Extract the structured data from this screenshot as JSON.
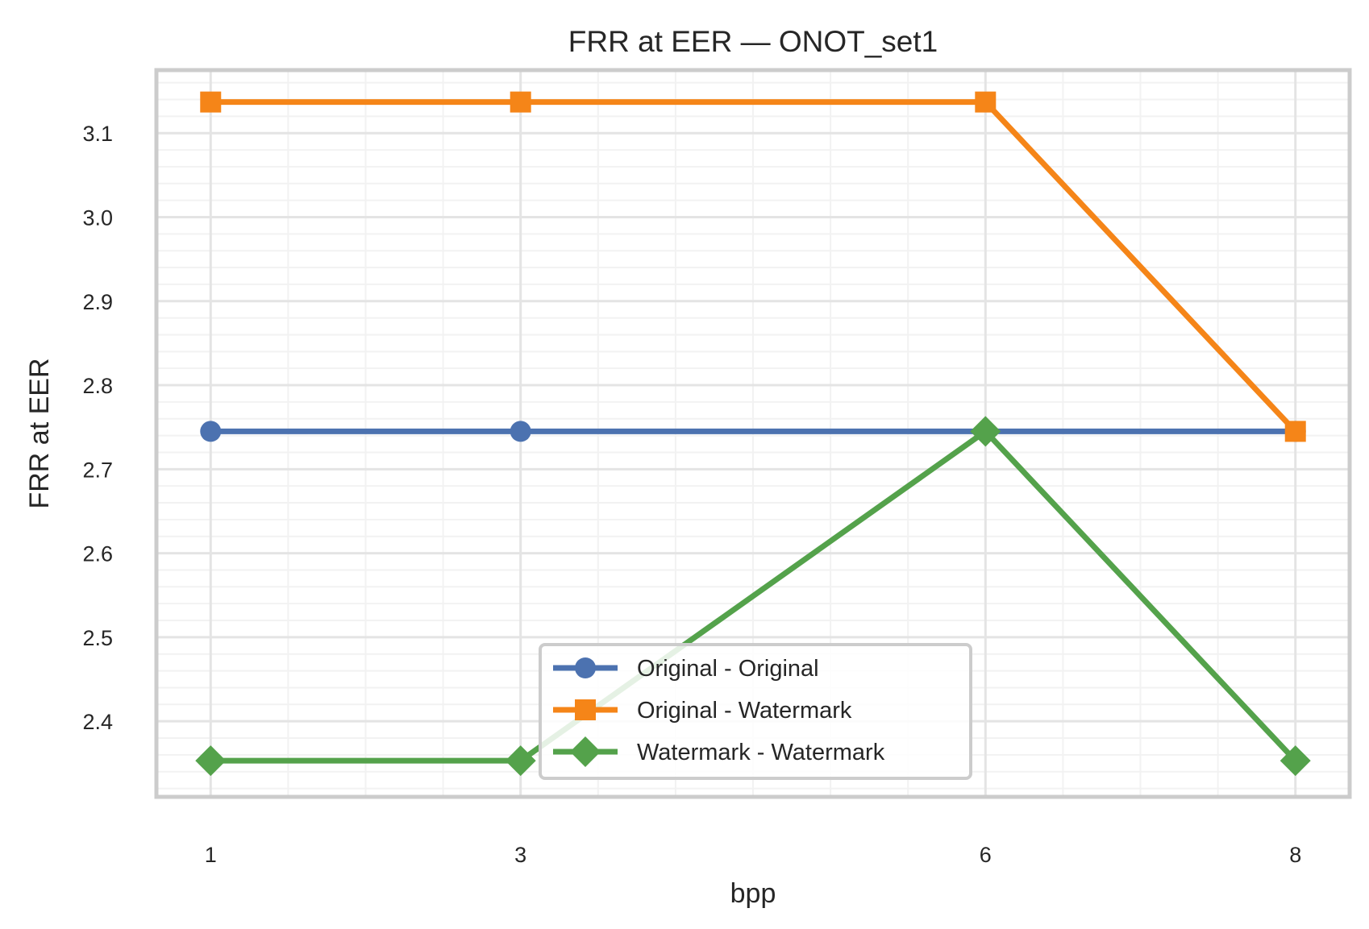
{
  "chart_data": {
    "type": "line",
    "title": "FRR at EER — ONOT_set1",
    "xlabel": "bpp",
    "ylabel": "FRR at EER",
    "x": [
      1,
      3,
      6,
      8
    ],
    "xlim": [
      0.65,
      8.35
    ],
    "ylim": [
      2.31,
      3.175
    ],
    "y_ticks": [
      2.4,
      2.5,
      2.6,
      2.7,
      2.8,
      2.9,
      3.0,
      3.1
    ],
    "grid": true,
    "legend_position": "lower-center",
    "series": [
      {
        "name": "Original - Original",
        "values": [
          2.745,
          2.745,
          2.745,
          2.745
        ],
        "color": "#4c72b0",
        "marker": "circle"
      },
      {
        "name": "Original - Watermark",
        "values": [
          3.137,
          3.137,
          3.137,
          2.745
        ],
        "color": "#f58518",
        "marker": "square"
      },
      {
        "name": "Watermark - Watermark",
        "values": [
          2.353,
          2.353,
          2.745,
          2.353
        ],
        "color": "#54a24b",
        "marker": "diamond"
      }
    ]
  }
}
